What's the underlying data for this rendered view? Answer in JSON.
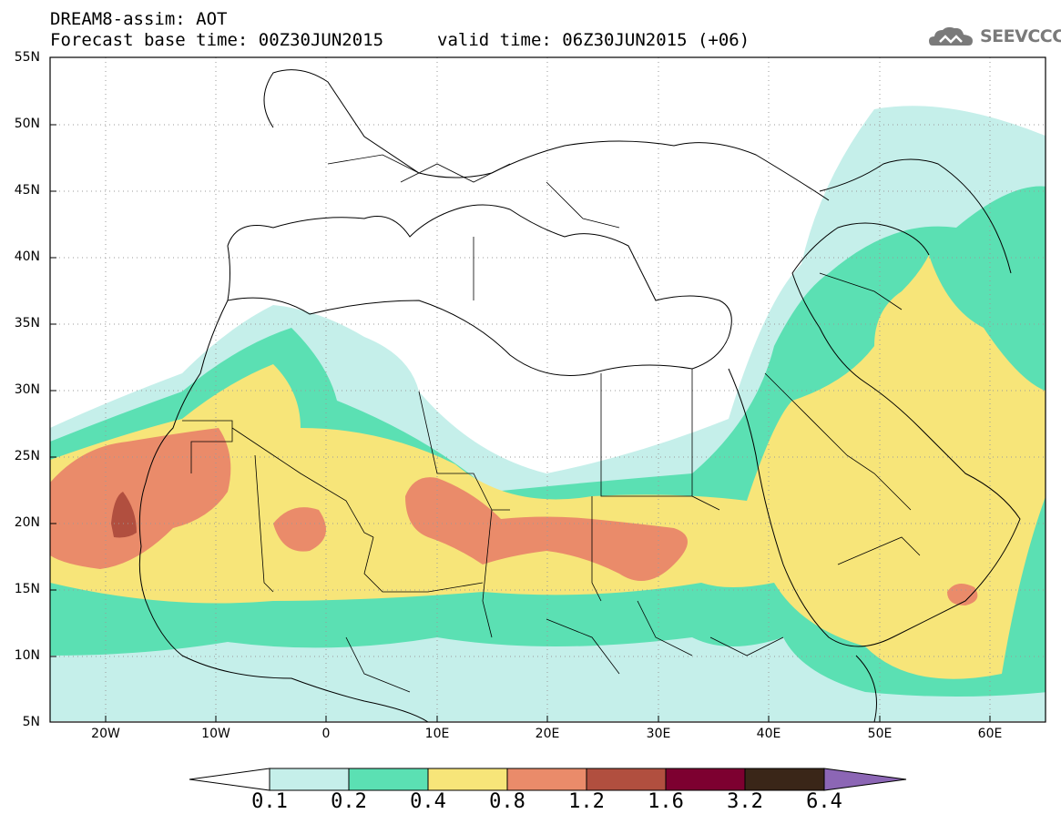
{
  "header": {
    "title_line1": "DREAM8-assim: AOT",
    "title_line2": "Forecast base time: 00Z30JUN2015",
    "valid_time": "valid time: 06Z30JUN2015 (+06)",
    "logo_text": "SEEVCCC",
    "logo_icon": "cloud-icon"
  },
  "map": {
    "extent": {
      "lon": [
        -25,
        65
      ],
      "lat": [
        5,
        55
      ]
    },
    "lat_labels": [
      "55N",
      "50N",
      "45N",
      "40N",
      "35N",
      "30N",
      "25N",
      "20N",
      "15N",
      "10N",
      "5N"
    ],
    "lon_labels": [
      "20W",
      "10W",
      "0",
      "10E",
      "20E",
      "30E",
      "40E",
      "50E",
      "60E"
    ],
    "grid": "dotted"
  },
  "colorbar": {
    "levels": [
      "0.1",
      "0.2",
      "0.4",
      "0.8",
      "1.2",
      "1.6",
      "3.2",
      "6.4"
    ],
    "colors": [
      "#ffffff",
      "#c5efea",
      "#5be0b3",
      "#f7e579",
      "#ea8b6a",
      "#b14f3f",
      "#7d0030",
      "#3a2618",
      "#8c66b5"
    ]
  }
}
